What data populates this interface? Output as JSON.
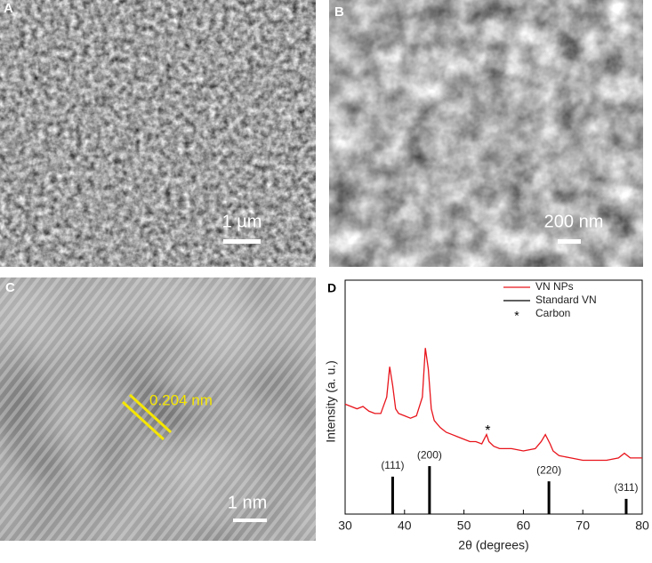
{
  "panels": [
    {
      "label": "A",
      "scale_bar": "1 µm"
    },
    {
      "label": "B",
      "scale_bar": "200 nm"
    },
    {
      "label": "C",
      "scale_bar": "1 nm",
      "annotation": "0.204 nm"
    }
  ],
  "chart_data": {
    "type": "line",
    "label": "D",
    "x_label": "2θ (degrees)",
    "y_label": "Intensity (a. u.)",
    "xlim": [
      30,
      80
    ],
    "xticks": [
      30,
      40,
      50,
      60,
      70,
      80
    ],
    "ylim": [
      0,
      100
    ],
    "series": [
      {
        "name": "VN NPs",
        "color": "#e8141b",
        "x": [
          30,
          31,
          32,
          33,
          34,
          35,
          36,
          37,
          37.5,
          38,
          38.5,
          39,
          40,
          41,
          42,
          43,
          43.5,
          44,
          44.5,
          45,
          46,
          47,
          48,
          49,
          50,
          51,
          52,
          53,
          53.8,
          54.2,
          55,
          56,
          58,
          60,
          62,
          63,
          63.7,
          64.5,
          65,
          66,
          68,
          70,
          72,
          74,
          76,
          77,
          78,
          80
        ],
        "values": [
          47,
          46,
          45,
          46,
          44,
          43,
          43,
          50,
          63,
          55,
          45,
          43,
          42,
          41,
          42,
          50,
          71,
          62,
          45,
          40,
          37,
          35,
          34,
          33,
          32,
          31,
          31,
          30,
          34,
          31,
          29,
          28,
          28,
          27,
          28,
          31,
          34,
          30,
          27,
          25,
          24,
          23,
          23,
          23,
          24,
          26,
          24,
          24
        ]
      },
      {
        "name": "Standard VN",
        "color": "#000000",
        "type": "bar",
        "x": [
          38,
          44.2,
          64.3,
          77.3
        ],
        "values": [
          16,
          20.5,
          14,
          6.5
        ],
        "labels": [
          "(111)",
          "(200)",
          "(220)",
          "(311)"
        ]
      }
    ],
    "annotation": {
      "text": "*",
      "label": "Carbon",
      "x": 54,
      "y": 37
    }
  }
}
